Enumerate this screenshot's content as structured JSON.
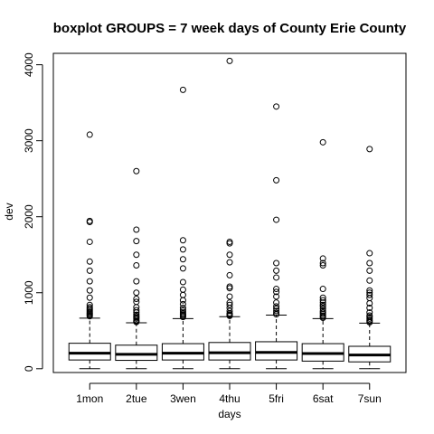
{
  "chart_data": {
    "type": "boxplot",
    "title": "boxplot GROUPS = 7 week days of County Erie County",
    "xlabel": "days",
    "ylabel": "dev",
    "ylim": [
      -50,
      4150
    ],
    "yticks": [
      0,
      1000,
      2000,
      3000,
      4000
    ],
    "grid": false,
    "legend": "none",
    "categories": [
      "1mon",
      "2tue",
      "3wen",
      "4thu",
      "5fri",
      "6sat",
      "7sun"
    ],
    "boxes": [
      {
        "category": "1mon",
        "min": 0,
        "q1": 115,
        "median": 205,
        "q3": 335,
        "max": 665,
        "outliers": [
          690,
          705,
          720,
          735,
          750,
          770,
          790,
          810,
          840,
          935,
          1030,
          1150,
          1290,
          1410,
          1670,
          1930,
          1945,
          3080
        ]
      },
      {
        "category": "2tue",
        "min": 0,
        "q1": 110,
        "median": 190,
        "q3": 310,
        "max": 605,
        "outliers": [
          615,
          625,
          640,
          660,
          675,
          690,
          710,
          740,
          770,
          810,
          880,
          920,
          1000,
          1150,
          1360,
          1500,
          1680,
          1830,
          2600
        ]
      },
      {
        "category": "3wen",
        "min": 0,
        "q1": 115,
        "median": 205,
        "q3": 330,
        "max": 660,
        "outliers": [
          680,
          695,
          710,
          725,
          745,
          770,
          800,
          850,
          900,
          970,
          1040,
          1140,
          1320,
          1440,
          1570,
          1690,
          3670
        ]
      },
      {
        "category": "4thu",
        "min": 0,
        "q1": 115,
        "median": 210,
        "q3": 345,
        "max": 685,
        "outliers": [
          695,
          705,
          715,
          730,
          760,
          800,
          840,
          870,
          950,
          1060,
          1080,
          1230,
          1400,
          1500,
          1650,
          1670,
          4050
        ]
      },
      {
        "category": "5fri",
        "min": 0,
        "q1": 115,
        "median": 215,
        "q3": 355,
        "max": 705,
        "outliers": [
          715,
          735,
          760,
          790,
          820,
          870,
          950,
          1010,
          1050,
          1200,
          1290,
          1390,
          1960,
          2480,
          3450
        ]
      },
      {
        "category": "6sat",
        "min": 0,
        "q1": 100,
        "median": 200,
        "q3": 330,
        "max": 660,
        "outliers": [
          670,
          685,
          700,
          720,
          740,
          760,
          790,
          820,
          840,
          870,
          900,
          935,
          1050,
          1360,
          1390,
          1450,
          2980
        ]
      },
      {
        "category": "7sun",
        "min": 0,
        "q1": 90,
        "median": 180,
        "q3": 295,
        "max": 600,
        "outliers": [
          610,
          625,
          640,
          660,
          680,
          700,
          740,
          800,
          860,
          930,
          970,
          1000,
          1030,
          1160,
          1290,
          1390,
          1520,
          2890
        ]
      }
    ]
  }
}
